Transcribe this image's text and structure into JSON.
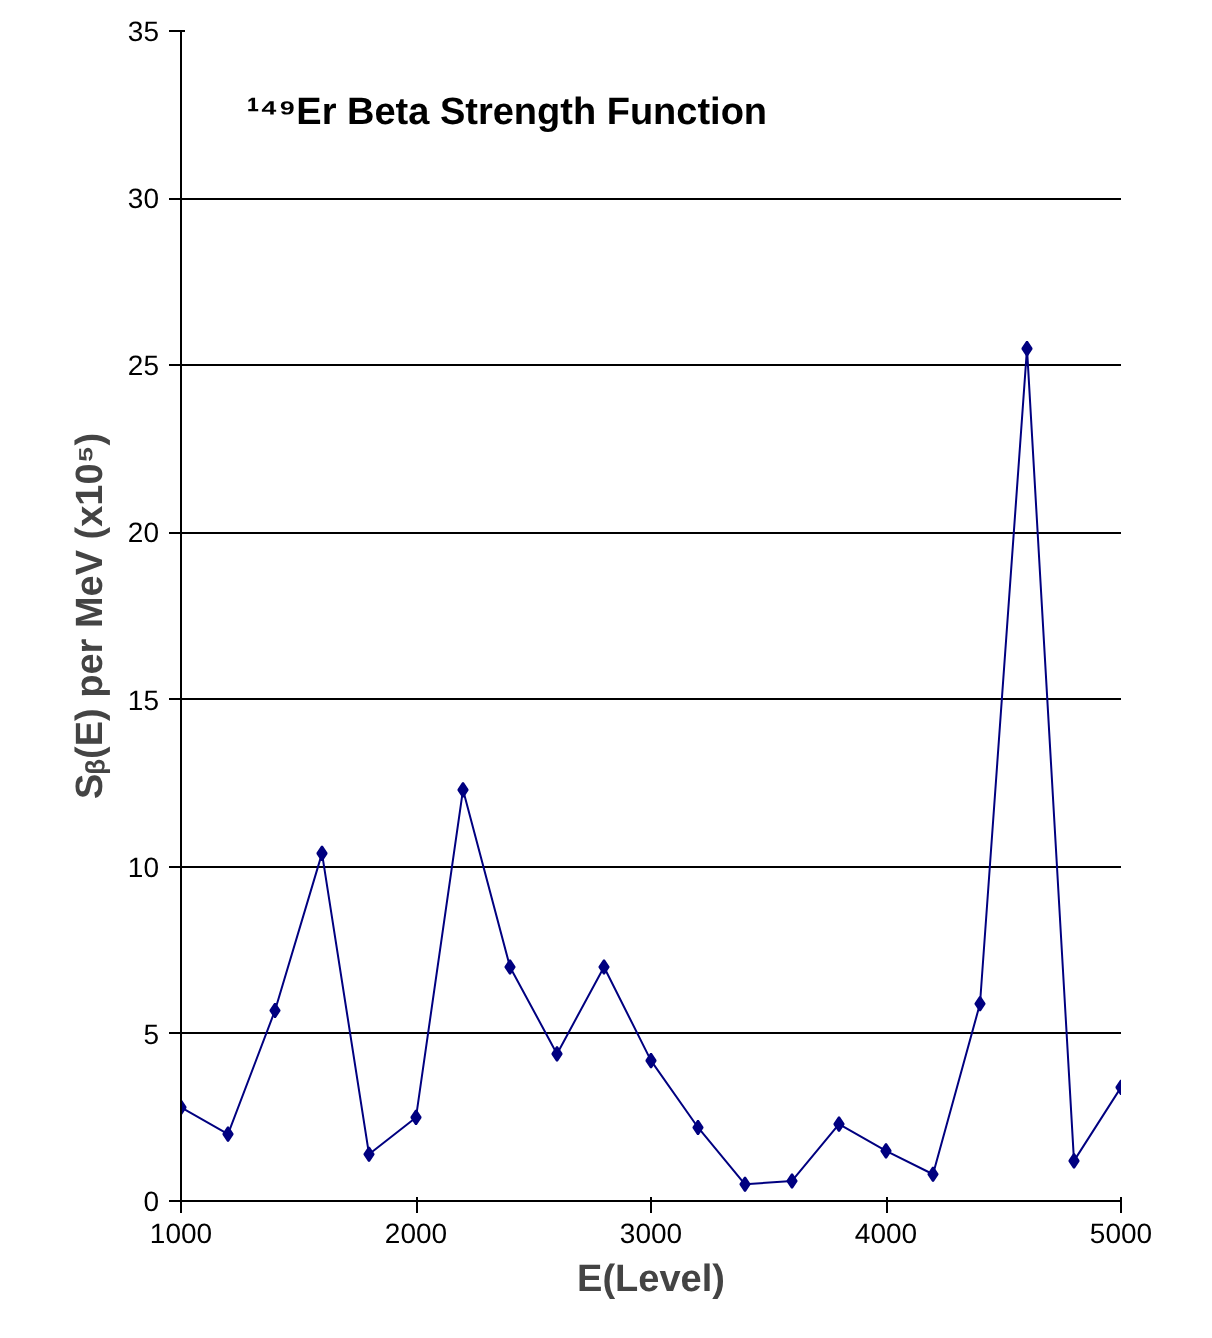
{
  "chart_data": {
    "type": "line",
    "title": "¹⁴⁹Er Beta Strength Function",
    "xlabel": "E(Level)",
    "ylabel": "Sᵦ(E) per MeV (x10⁵)",
    "x": [
      1000,
      1200,
      1400,
      1600,
      1800,
      2000,
      2200,
      2400,
      2600,
      2800,
      3000,
      3200,
      3400,
      3600,
      3800,
      4000,
      4200,
      4400,
      4600,
      4800,
      5000
    ],
    "series": [
      {
        "color": "#000080",
        "values": [
          2.8,
          2.0,
          5.7,
          10.4,
          1.4,
          2.5,
          12.3,
          7.0,
          4.4,
          7.0,
          4.2,
          2.2,
          0.5,
          0.6,
          2.3,
          1.5,
          0.8,
          5.9,
          25.5,
          1.2,
          3.4
        ]
      }
    ],
    "xlim": [
      1000,
      5000
    ],
    "xticks": [
      1000,
      2000,
      3000,
      4000,
      5000
    ],
    "ylim": [
      0,
      35
    ],
    "yticks": [
      0,
      5,
      10,
      15,
      20,
      25,
      30,
      35
    ],
    "grid": "y",
    "marker": "diamond",
    "line_style": "solid"
  }
}
